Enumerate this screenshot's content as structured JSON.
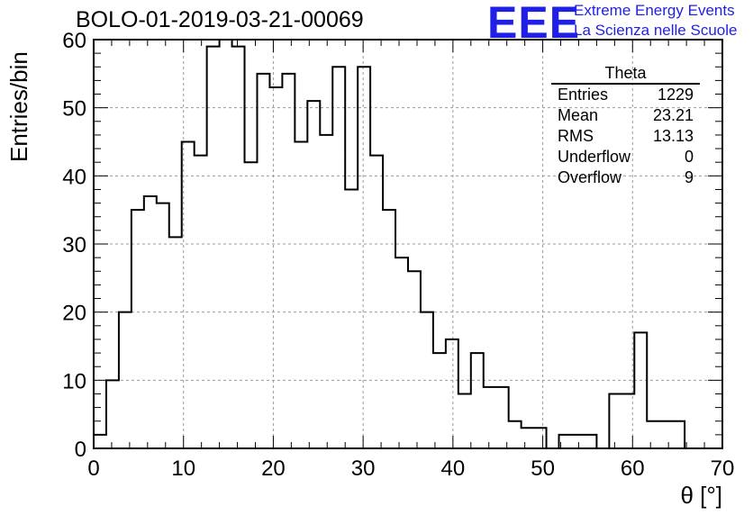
{
  "header": {
    "title": "BOLO-01-2019-03-21-00069"
  },
  "logo": {
    "mark": "EEE",
    "line1": "Extreme Energy Events",
    "line2": "La Scienza nelle Scuole",
    "color": "#1f1fe6"
  },
  "stats_box": {
    "title": "Theta",
    "rows": [
      {
        "label": "Entries",
        "value": "1229"
      },
      {
        "label": "Mean",
        "value": "23.21"
      },
      {
        "label": "RMS",
        "value": "13.13"
      },
      {
        "label": "Underflow",
        "value": "0"
      },
      {
        "label": "Overflow",
        "value": "9"
      }
    ]
  },
  "chart_data": {
    "type": "bar",
    "style": "step-histogram",
    "xlabel": "θ [°]",
    "ylabel": "Entries/bin",
    "xlim": [
      0,
      70
    ],
    "ylim": [
      0,
      60
    ],
    "grid": true,
    "bin_width": 1.4,
    "bin_edges_start": 0,
    "values": [
      2,
      10,
      20,
      35,
      37,
      36,
      31,
      45,
      43,
      59,
      60,
      59,
      42,
      55,
      53,
      55,
      45,
      51,
      46,
      56,
      38,
      56,
      43,
      35,
      28,
      26,
      20,
      14,
      16,
      8,
      14,
      9,
      9,
      4,
      3,
      3,
      0,
      2,
      2,
      2,
      0,
      8,
      8,
      17,
      4,
      4,
      4
    ],
    "xticks": [
      0,
      10,
      20,
      30,
      40,
      50,
      60,
      70
    ],
    "yticks": [
      0,
      10,
      20,
      30,
      40,
      50,
      60
    ],
    "line_color": "#000000"
  }
}
